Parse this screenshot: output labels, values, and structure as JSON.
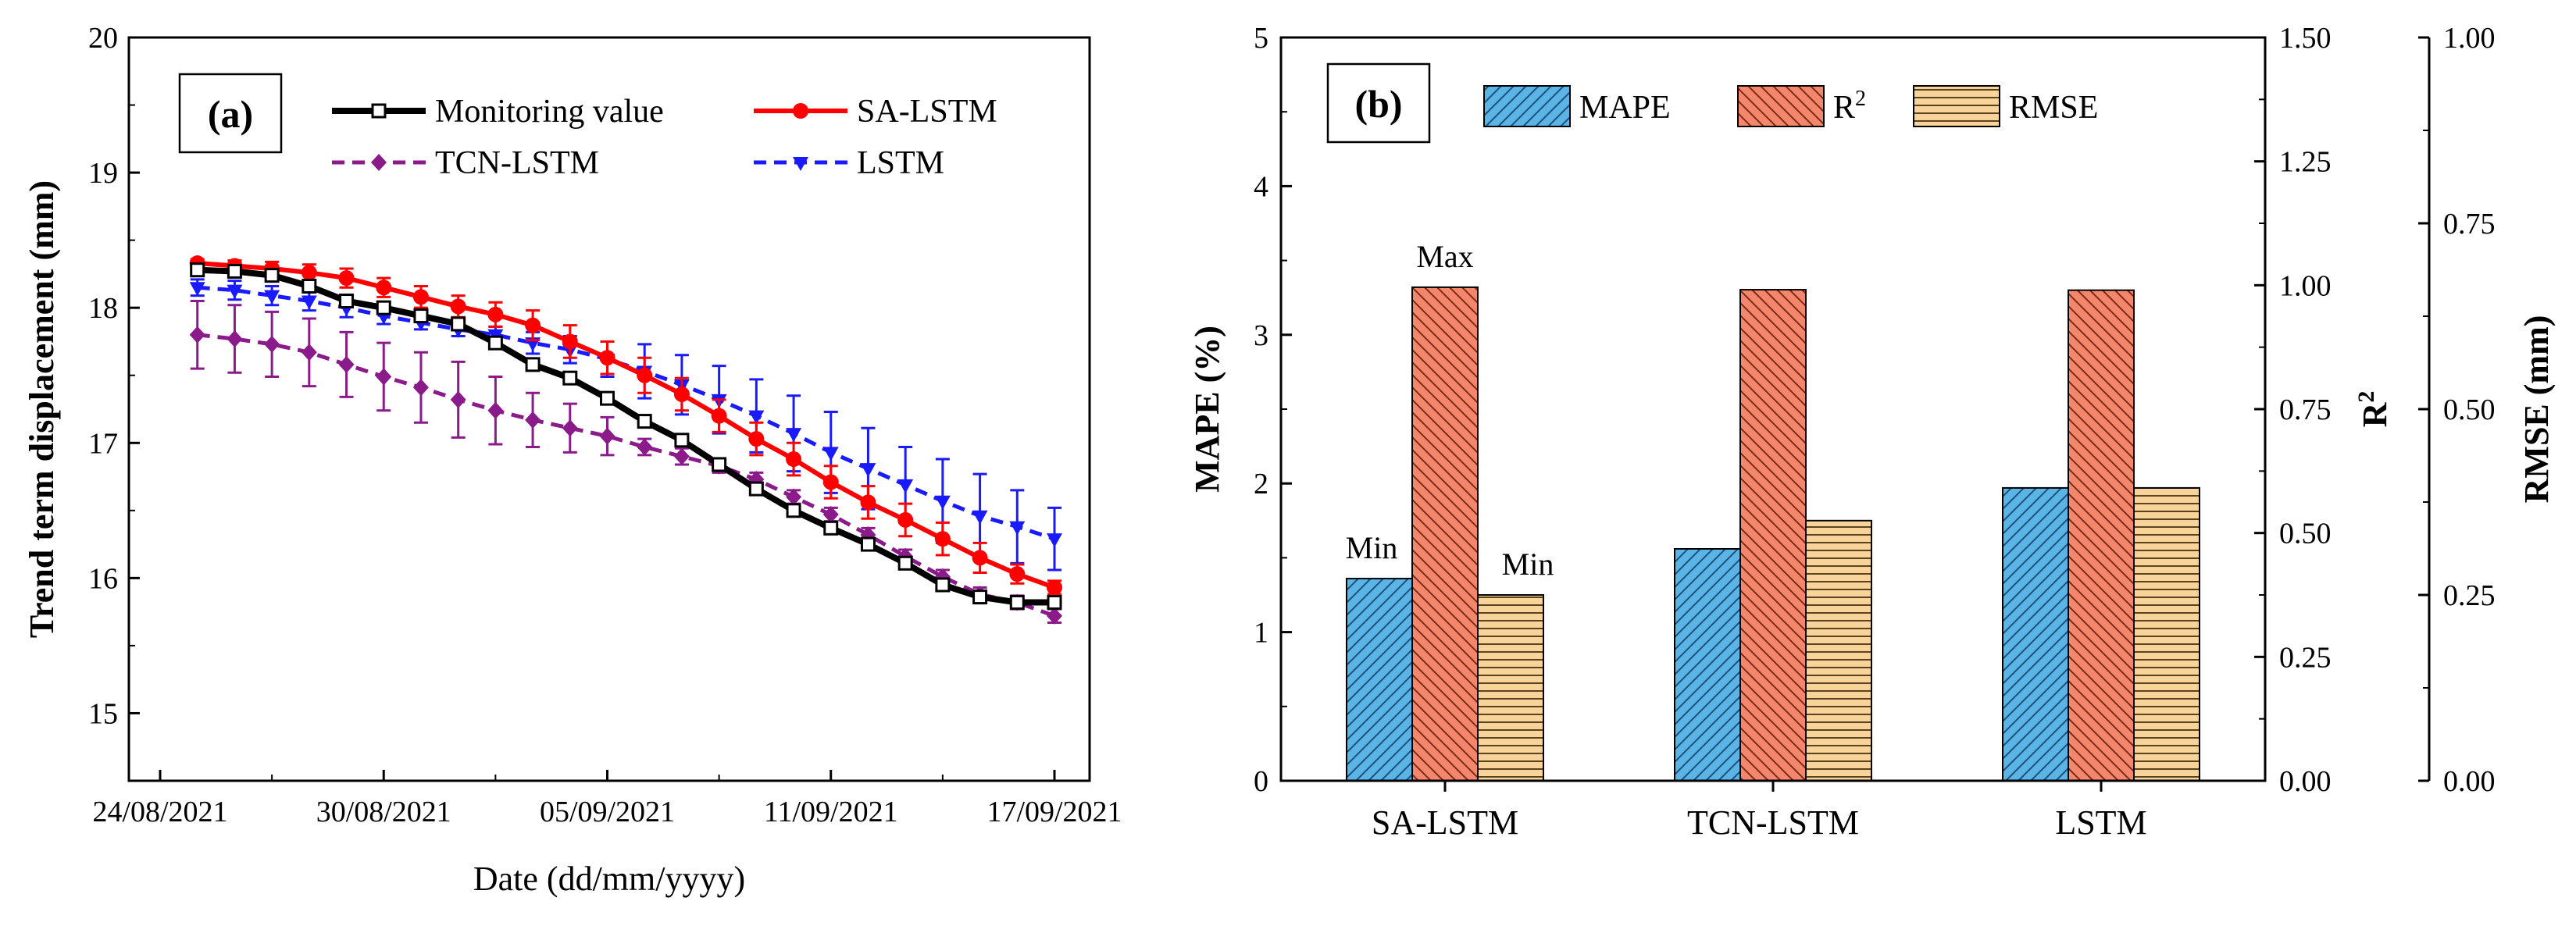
{
  "chart_data": [
    {
      "type": "line",
      "panel_label": "(a)",
      "xlabel": "Date (dd/mm/yyyy)",
      "ylabel": "Trend term displacement  (mm)",
      "xlim": [
        0,
        24
      ],
      "ylim": [
        14.5,
        20
      ],
      "yticks": [
        "15",
        "16",
        "17",
        "18",
        "19",
        "20"
      ],
      "ytick_values": [
        15,
        16,
        17,
        18,
        19,
        20
      ],
      "xticks": [
        {
          "day": 0,
          "label": "24/08/2021"
        },
        {
          "day": 6,
          "label": "30/08/2021"
        },
        {
          "day": 12,
          "label": "05/09/2021"
        },
        {
          "day": 18,
          "label": "11/09/2021"
        },
        {
          "day": 24,
          "label": "17/09/2021"
        }
      ],
      "x": [
        1,
        2,
        3,
        4,
        5,
        6,
        7,
        8,
        9,
        10,
        11,
        12,
        13,
        14,
        15,
        16,
        17,
        18,
        19,
        20,
        21,
        22,
        23,
        24
      ],
      "series": [
        {
          "name": "Monitoring value",
          "color": "#000000",
          "values": [
            18.28,
            18.27,
            18.24,
            18.16,
            18.05,
            18.0,
            17.94,
            17.88,
            17.74,
            17.58,
            17.48,
            17.33,
            17.16,
            17.02,
            16.84,
            16.66,
            16.5,
            16.37,
            16.25,
            16.11,
            15.95,
            15.86,
            15.82,
            15.82
          ],
          "errors": []
        },
        {
          "name": "SA-LSTM",
          "color": "#ff0000",
          "values": [
            18.33,
            18.31,
            18.29,
            18.26,
            18.22,
            18.15,
            18.08,
            18.01,
            17.95,
            17.87,
            17.75,
            17.63,
            17.5,
            17.36,
            17.2,
            17.03,
            16.88,
            16.71,
            16.56,
            16.43,
            16.29,
            16.15,
            16.03,
            15.93
          ],
          "errors": [
            0.03,
            0.04,
            0.05,
            0.06,
            0.07,
            0.07,
            0.08,
            0.08,
            0.09,
            0.11,
            0.12,
            0.12,
            0.13,
            0.12,
            0.12,
            0.12,
            0.12,
            0.12,
            0.12,
            0.12,
            0.12,
            0.11,
            0.07,
            0.05
          ]
        },
        {
          "name": "TCN-LSTM",
          "color": "#8b1a8b",
          "values": [
            17.8,
            17.77,
            17.73,
            17.67,
            17.58,
            17.49,
            17.41,
            17.32,
            17.24,
            17.17,
            17.11,
            17.05,
            16.97,
            16.9,
            16.83,
            16.73,
            16.6,
            16.47,
            16.32,
            16.16,
            16.01,
            15.88,
            15.82,
            15.72
          ],
          "errors": [
            0.25,
            0.25,
            0.24,
            0.25,
            0.24,
            0.25,
            0.26,
            0.28,
            0.25,
            0.2,
            0.18,
            0.14,
            0.06,
            0.06,
            0.05,
            0.05,
            0.05,
            0.05,
            0.05,
            0.05,
            0.05,
            0.05,
            0.05,
            0.05
          ]
        },
        {
          "name": "LSTM",
          "color": "#1a1aff",
          "values": [
            18.15,
            18.13,
            18.09,
            18.05,
            18.0,
            17.94,
            17.89,
            17.84,
            17.8,
            17.74,
            17.69,
            17.62,
            17.53,
            17.43,
            17.32,
            17.2,
            17.07,
            16.93,
            16.81,
            16.69,
            16.57,
            16.46,
            16.38,
            16.29
          ],
          "errors": [
            0.06,
            0.07,
            0.07,
            0.07,
            0.07,
            0.06,
            0.05,
            0.05,
            0.06,
            0.08,
            0.1,
            0.13,
            0.2,
            0.22,
            0.25,
            0.27,
            0.28,
            0.3,
            0.3,
            0.28,
            0.31,
            0.31,
            0.27,
            0.23
          ]
        }
      ],
      "legend": [
        "Monitoring value",
        "SA-LSTM",
        "TCN-LSTM",
        "LSTM"
      ]
    },
    {
      "type": "bar",
      "panel_label": "(b)",
      "categories": [
        "SA-LSTM",
        "TCN-LSTM",
        "LSTM"
      ],
      "series": [
        {
          "name": "MAPE",
          "color": "#5ab4e5",
          "axis": "MAPE (%)",
          "values": [
            1.36,
            1.56,
            1.97
          ]
        },
        {
          "name": "R2",
          "color": "#f4876b",
          "axis": "R2",
          "values": [
            0.996,
            0.991,
            0.99
          ]
        },
        {
          "name": "RMSE",
          "color": "#f8d49a",
          "axis": "RMSE (mm)",
          "values": [
            0.25,
            0.35,
            0.394
          ]
        }
      ],
      "legend": [
        {
          "name": "MAPE",
          "base": "MAPE",
          "sup": ""
        },
        {
          "name": "R2",
          "base": "R",
          "sup": "2"
        },
        {
          "name": "RMSE",
          "base": "RMSE",
          "sup": ""
        }
      ],
      "axes": {
        "left": {
          "label": "MAPE (%)",
          "ylim": [
            0,
            5
          ],
          "ticks": [
            "0",
            "1",
            "2",
            "3",
            "4",
            "5"
          ]
        },
        "right1": {
          "label": "R",
          "label_sup": "2",
          "ylim": [
            0,
            1.5
          ],
          "ticks": [
            "0.00",
            "0.25",
            "0.50",
            "0.75",
            "1.00",
            "1.25",
            "1.50"
          ]
        },
        "right2": {
          "label": "RMSE (mm)",
          "ylim": [
            0,
            1
          ],
          "ticks": [
            "0.00",
            "0.25",
            "0.50",
            "0.75",
            "1.00"
          ]
        }
      },
      "annotations": [
        {
          "text": "Min",
          "category": "SA-LSTM",
          "series": "MAPE"
        },
        {
          "text": "Max",
          "category": "SA-LSTM",
          "series": "R2"
        },
        {
          "text": "Min",
          "category": "SA-LSTM",
          "series": "RMSE"
        }
      ]
    }
  ]
}
